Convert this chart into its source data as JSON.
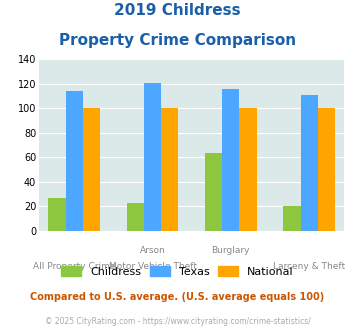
{
  "title_line1": "2019 Childress",
  "title_line2": "Property Crime Comparison",
  "cat_labels_top": [
    "",
    "Arson",
    "Burglary",
    ""
  ],
  "cat_labels_bottom": [
    "All Property Crime",
    "Motor Vehicle Theft",
    "",
    "Larceny & Theft"
  ],
  "childress_values": [
    27,
    23,
    64,
    20
  ],
  "texas_values": [
    114,
    121,
    116,
    111
  ],
  "national_values": [
    100,
    100,
    100,
    100
  ],
  "childress_color": "#8dc63f",
  "texas_color": "#4da6ff",
  "national_color": "#ffa500",
  "bg_color": "#dce9e9",
  "ylim": [
    0,
    140
  ],
  "yticks": [
    0,
    20,
    40,
    60,
    80,
    100,
    120,
    140
  ],
  "footnote1": "Compared to U.S. average. (U.S. average equals 100)",
  "footnote2": "© 2025 CityRating.com - https://www.cityrating.com/crime-statistics/",
  "title_color": "#1a5fa8",
  "footnote1_color": "#cc5500",
  "footnote2_color": "#aaaaaa",
  "legend_labels": [
    "Childress",
    "Texas",
    "National"
  ]
}
